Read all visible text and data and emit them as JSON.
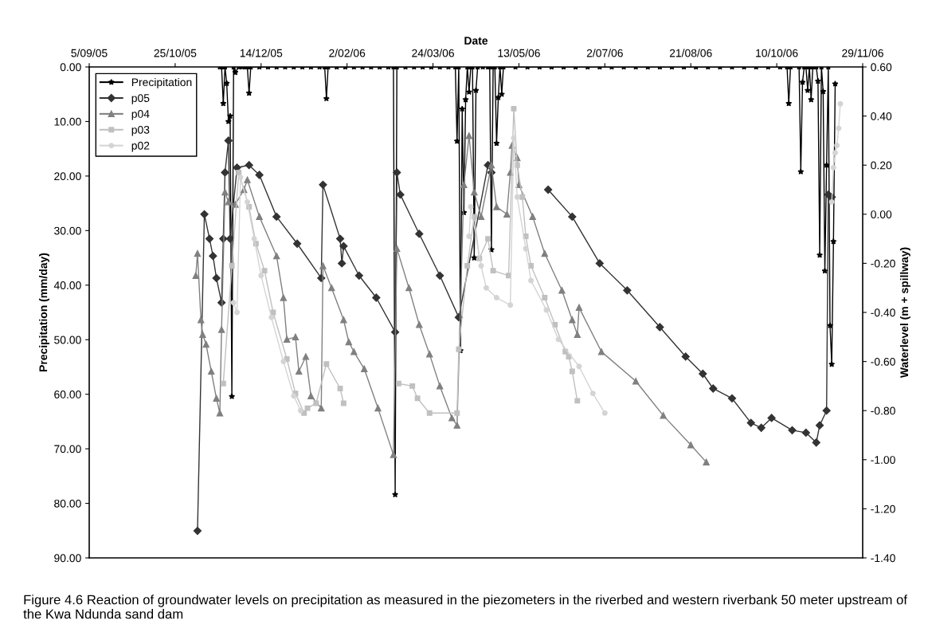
{
  "chart_data": {
    "type": "line",
    "xlabel": "Date",
    "ylabel": "Precipitation (mm/day)",
    "y2label": "Waterlevel (m + spillway)",
    "xlim": [
      "2005-09-05",
      "2006-11-29"
    ],
    "xticks": [
      {
        "value": "2005-09-05",
        "label": "5/09/05"
      },
      {
        "value": "2005-10-25",
        "label": "25/10/05"
      },
      {
        "value": "2005-12-14",
        "label": "14/12/05"
      },
      {
        "value": "2006-02-02",
        "label": "2/02/06"
      },
      {
        "value": "2006-03-24",
        "label": "24/03/06"
      },
      {
        "value": "2006-05-13",
        "label": "13/05/06"
      },
      {
        "value": "2006-07-02",
        "label": "2/07/06"
      },
      {
        "value": "2006-08-21",
        "label": "21/08/06"
      },
      {
        "value": "2006-10-10",
        "label": "10/10/06"
      },
      {
        "value": "2006-11-29",
        "label": "29/11/06"
      }
    ],
    "ylim": [
      90,
      0
    ],
    "yticks": [
      {
        "value": 0,
        "label": "0.00"
      },
      {
        "value": 10,
        "label": "10.00"
      },
      {
        "value": 20,
        "label": "20.00"
      },
      {
        "value": 30,
        "label": "30.00"
      },
      {
        "value": 40,
        "label": "40.00"
      },
      {
        "value": 50,
        "label": "50.00"
      },
      {
        "value": 60,
        "label": "60.00"
      },
      {
        "value": 70,
        "label": "70.00"
      },
      {
        "value": 80,
        "label": "80.00"
      },
      {
        "value": 90,
        "label": "90.00"
      }
    ],
    "y2lim": [
      -1.4,
      0.6
    ],
    "y2ticks": [
      {
        "value": 0.6,
        "label": "0.60"
      },
      {
        "value": 0.4,
        "label": "0.40"
      },
      {
        "value": 0.2,
        "label": "0.20"
      },
      {
        "value": 0,
        "label": "0.00"
      },
      {
        "value": -0.2,
        "label": "-0.20"
      },
      {
        "value": -0.4,
        "label": "-0.40"
      },
      {
        "value": -0.6,
        "label": "-0.60"
      },
      {
        "value": -0.8,
        "label": "-0.80"
      },
      {
        "value": -1.0,
        "label": "-1.00"
      },
      {
        "value": -1.2,
        "label": "-1.20"
      },
      {
        "value": -1.4,
        "label": "-1.40"
      }
    ],
    "legend": "top left",
    "grid": false,
    "annotations": [
      "Figure 4.6 Reaction of groundwater levels on precipitation as measured in the piezometers in the riverbed and western riverbank 50 meter upstream of the Kwa Ndunda sand dam"
    ],
    "series": [
      {
        "name": "Precipitation",
        "color": "#000000",
        "marker": "star",
        "x": [
          "2005-11-20",
          "2005-11-21",
          "2005-11-22",
          "2005-11-23",
          "2005-11-24",
          "2005-11-25",
          "2005-11-26",
          "2005-11-27",
          "2005-11-28",
          "2005-11-29",
          "2005-12-01",
          "2005-12-03",
          "2005-12-05",
          "2005-12-06",
          "2005-12-07",
          "2005-12-08",
          "2005-12-13",
          "2005-12-18",
          "2005-12-23",
          "2005-12-28",
          "2006-01-02",
          "2006-01-07",
          "2006-01-12",
          "2006-01-17",
          "2006-01-20",
          "2006-01-21",
          "2006-01-22",
          "2006-01-27",
          "2006-02-01",
          "2006-02-06",
          "2006-02-11",
          "2006-02-16",
          "2006-02-21",
          "2006-02-26",
          "2006-03-01",
          "2006-03-02",
          "2006-03-03",
          "2006-03-08",
          "2006-03-13",
          "2006-03-18",
          "2006-03-23",
          "2006-03-28",
          "2006-04-02",
          "2006-04-06",
          "2006-04-07",
          "2006-04-08",
          "2006-04-09",
          "2006-04-10",
          "2006-04-11",
          "2006-04-12",
          "2006-04-13",
          "2006-04-14",
          "2006-04-15",
          "2006-04-16",
          "2006-04-17",
          "2006-04-18",
          "2006-04-19",
          "2006-04-22",
          "2006-04-25",
          "2006-04-26",
          "2006-04-27",
          "2006-04-28",
          "2006-04-29",
          "2006-04-30",
          "2006-05-01",
          "2006-05-02",
          "2006-05-03",
          "2006-05-04",
          "2006-05-11",
          "2006-05-18",
          "2006-05-25",
          "2006-06-01",
          "2006-06-08",
          "2006-06-15",
          "2006-06-22",
          "2006-06-29",
          "2006-07-06",
          "2006-07-13",
          "2006-07-20",
          "2006-07-27",
          "2006-08-03",
          "2006-08-10",
          "2006-08-17",
          "2006-08-24",
          "2006-08-31",
          "2006-09-07",
          "2006-09-14",
          "2006-09-21",
          "2006-09-28",
          "2006-10-05",
          "2006-10-12",
          "2006-10-16",
          "2006-10-17",
          "2006-10-18",
          "2006-10-23",
          "2006-10-24",
          "2006-10-25",
          "2006-10-26",
          "2006-10-27",
          "2006-10-28",
          "2006-10-29",
          "2006-10-30",
          "2006-10-31",
          "2006-11-02",
          "2006-11-03",
          "2006-11-04",
          "2006-11-05",
          "2006-11-06",
          "2006-11-07",
          "2006-11-08",
          "2006-11-09",
          "2006-11-10",
          "2006-11-11",
          "2006-11-12",
          "2006-11-13"
        ],
        "values": [
          0,
          0,
          6.7,
          0,
          3,
          10,
          9,
          60.4,
          0,
          1,
          0,
          0,
          0,
          0,
          4.8,
          0,
          0,
          0,
          0,
          0,
          0,
          0,
          0,
          0,
          0,
          5.8,
          0,
          0,
          0,
          0,
          0,
          0,
          0,
          0,
          0,
          78.4,
          0,
          0,
          0,
          0,
          0,
          0,
          0,
          0,
          13.6,
          0,
          52,
          7.7,
          26.7,
          6,
          0,
          4.6,
          0,
          0,
          35,
          4.3,
          0,
          0,
          0,
          0,
          33.5,
          0,
          0,
          14,
          5.6,
          0,
          5,
          0,
          0,
          0,
          0,
          0,
          0,
          0,
          0,
          0,
          0,
          0,
          0,
          0,
          0,
          0,
          0,
          0,
          0,
          0,
          0,
          0,
          0,
          0,
          0,
          0,
          6.7,
          0,
          0,
          19.2,
          2.8,
          0,
          0,
          4.3,
          0,
          6,
          0,
          0,
          2.6,
          34.5,
          0,
          4.5,
          37.4,
          18,
          0,
          47.4,
          54.5,
          32,
          3.1
        ]
      },
      {
        "name": "p05",
        "color": "#333333",
        "marker": "diamond",
        "axis": "y2",
        "x": [
          "2005-11-07",
          "2005-11-11",
          "2005-11-14",
          "2005-11-16",
          "2005-11-18",
          "2005-11-21",
          "2005-11-22",
          "2005-11-23",
          "2005-11-25",
          "2005-11-26",
          "2005-11-30",
          "2005-12-07",
          "2005-12-13",
          "2005-12-23",
          "2006-01-04",
          "2006-01-18",
          "2006-01-19",
          "2006-01-29",
          "2006-01-30",
          "2006-01-31",
          "2006-02-09",
          "2006-02-19",
          "2006-03-02",
          "2006-03-03",
          "2006-03-05",
          "2006-03-16",
          "2006-03-28",
          "2006-04-08",
          "2006-04-25",
          "2006-04-27",
          "2006-05-20",
          "2006-05-30",
          "2006-06-13",
          "2006-06-29",
          "2006-07-15",
          "2006-08-03",
          "2006-08-18",
          "2006-08-28",
          "2006-09-03",
          "2006-09-14",
          "2006-09-25",
          "2006-10-01",
          "2006-10-07",
          "2006-10-19",
          "2006-10-27",
          "2006-11-02",
          "2006-11-04",
          "2006-11-08",
          "2006-11-09",
          "2006-11-11"
        ],
        "values": [
          -1.29,
          0.0,
          -0.1,
          -0.17,
          -0.26,
          -0.36,
          -0.1,
          0.17,
          0.3,
          -0.1,
          0.19,
          0.2,
          0.16,
          -0.01,
          -0.12,
          -0.26,
          0.12,
          -0.1,
          -0.2,
          -0.13,
          -0.25,
          -0.34,
          -0.48,
          0.17,
          0.08,
          -0.08,
          -0.25,
          -0.42,
          0.2,
          0.17,
          null,
          0.1,
          -0.01,
          -0.2,
          -0.31,
          -0.46,
          -0.58,
          -0.65,
          -0.71,
          -0.75,
          -0.85,
          -0.87,
          -0.83,
          -0.88,
          -0.89,
          -0.93,
          -0.86,
          -0.8,
          0.08,
          0.07
        ]
      },
      {
        "name": "p04",
        "color": "#808080",
        "marker": "triangle",
        "axis": "y2",
        "x": [
          "2005-11-06",
          "2005-11-07",
          "2005-11-09",
          "2005-11-10",
          "2005-11-12",
          "2005-11-15",
          "2005-11-18",
          "2005-11-20",
          "2005-11-21",
          "2005-11-23",
          "2005-11-25",
          "2005-11-29",
          "2005-12-04",
          "2005-12-06",
          "2005-12-13",
          "2005-12-23",
          "2005-12-27",
          "2005-12-29",
          "2006-01-03",
          "2006-01-05",
          "2006-01-09",
          "2006-01-12",
          "2006-01-18",
          "2006-01-19",
          "2006-01-24",
          "2006-01-31",
          "2006-02-03",
          "2006-02-06",
          "2006-02-12",
          "2006-02-20",
          "2006-03-01",
          "2006-03-03",
          "2006-03-10",
          "2006-03-16",
          "2006-03-22",
          "2006-03-28",
          "2006-04-04",
          "2006-04-07",
          "2006-04-11",
          "2006-04-14",
          "2006-04-17",
          "2006-04-21",
          "2006-04-27",
          "2006-04-30",
          "2006-05-06",
          "2006-05-08",
          "2006-05-09",
          "2006-05-12",
          "2006-05-13",
          "2006-05-21",
          "2006-05-28",
          "2006-06-07",
          "2006-06-13",
          "2006-06-16",
          "2006-06-17",
          "2006-06-30",
          "2006-07-20",
          "2006-08-05",
          "2006-08-21",
          "2006-08-30"
        ],
        "values": [
          -0.25,
          -0.16,
          -0.43,
          -0.49,
          -0.53,
          -0.64,
          -0.75,
          -0.81,
          -0.47,
          0.09,
          0.05,
          0.04,
          0.1,
          0.14,
          -0.01,
          -0.17,
          -0.34,
          -0.51,
          -0.5,
          -0.64,
          -0.58,
          -0.74,
          -0.79,
          -0.21,
          -0.3,
          -0.43,
          -0.52,
          -0.56,
          -0.63,
          -0.79,
          -0.98,
          -0.14,
          -0.3,
          -0.45,
          -0.57,
          -0.7,
          -0.83,
          -0.86,
          0.12,
          0.32,
          0.09,
          -0.01,
          0.2,
          0.03,
          0.0,
          0.17,
          0.28,
          0.23,
          0.12,
          -0.01,
          -0.16,
          -0.31,
          -0.43,
          -0.49,
          -0.38,
          -0.56,
          -0.68,
          -0.82,
          -0.94,
          -1.01
        ]
      },
      {
        "name": "p03",
        "color": "#c0c0c0",
        "marker": "square",
        "axis": "y2",
        "x": [
          "2005-11-22",
          "2005-11-27",
          "2005-12-01",
          "2005-12-07",
          "2005-12-11",
          "2005-12-16",
          "2005-12-21",
          "2005-12-29",
          "2006-01-03",
          "2006-01-08",
          "2006-01-10",
          "2006-01-15",
          "2006-01-21",
          "2006-01-29",
          "2006-01-31",
          "2006-02-15",
          "2006-03-04",
          "2006-03-12",
          "2006-03-15",
          "2006-03-22",
          "2006-04-07",
          "2006-04-08",
          "2006-04-13",
          "2006-04-17",
          "2006-04-20",
          "2006-04-25",
          "2006-04-28",
          "2006-05-07",
          "2006-05-10",
          "2006-05-12",
          "2006-05-15",
          "2006-05-17",
          "2006-05-20",
          "2006-05-28",
          "2006-06-03",
          "2006-06-09",
          "2006-06-11",
          "2006-06-13",
          "2006-06-16"
        ],
        "values": [
          -0.69,
          -0.21,
          0.17,
          0.03,
          -0.12,
          -0.23,
          -0.4,
          -0.59,
          -0.73,
          -0.81,
          -0.79,
          -0.77,
          -0.61,
          -0.71,
          -0.77,
          null,
          -0.69,
          -0.7,
          -0.75,
          -0.81,
          -0.81,
          -0.55,
          -0.21,
          -0.01,
          -0.18,
          -0.1,
          -0.23,
          -0.25,
          0.43,
          0.2,
          0.07,
          -0.09,
          -0.21,
          -0.34,
          -0.45,
          -0.56,
          -0.58,
          -0.64,
          -0.76
        ]
      },
      {
        "name": "p02",
        "color": "#d4d4d4",
        "marker": "circle",
        "axis": "y2",
        "x": [
          "2005-11-28",
          "2005-11-30",
          "2005-12-02",
          "2005-12-06",
          "2005-12-10",
          "2005-12-14",
          "2005-12-20",
          "2005-12-27",
          "2006-01-02",
          "2006-01-06",
          "2006-02-20",
          "2006-04-14",
          "2006-04-15",
          "2006-04-21",
          "2006-04-24",
          "2006-04-30",
          "2006-05-08",
          "2006-05-10",
          "2006-05-12",
          "2006-05-17",
          "2006-05-20",
          "2006-05-29",
          "2006-06-05",
          "2006-06-17",
          "2006-06-25",
          "2006-07-02",
          "2006-09-01",
          "2006-11-11",
          "2006-11-12",
          "2006-11-13",
          "2006-11-14",
          "2006-11-15",
          "2006-11-16"
        ],
        "values": [
          -0.36,
          -0.4,
          0.15,
          0.05,
          -0.1,
          -0.25,
          -0.42,
          -0.6,
          -0.74,
          -0.8,
          null,
          -0.09,
          0.03,
          -0.21,
          -0.3,
          -0.34,
          -0.37,
          0.31,
          0.07,
          -0.14,
          -0.27,
          -0.39,
          -0.51,
          -0.62,
          -0.73,
          -0.81,
          null,
          0.05,
          0.19,
          0.25,
          0.28,
          0.35,
          0.45
        ]
      }
    ]
  }
}
